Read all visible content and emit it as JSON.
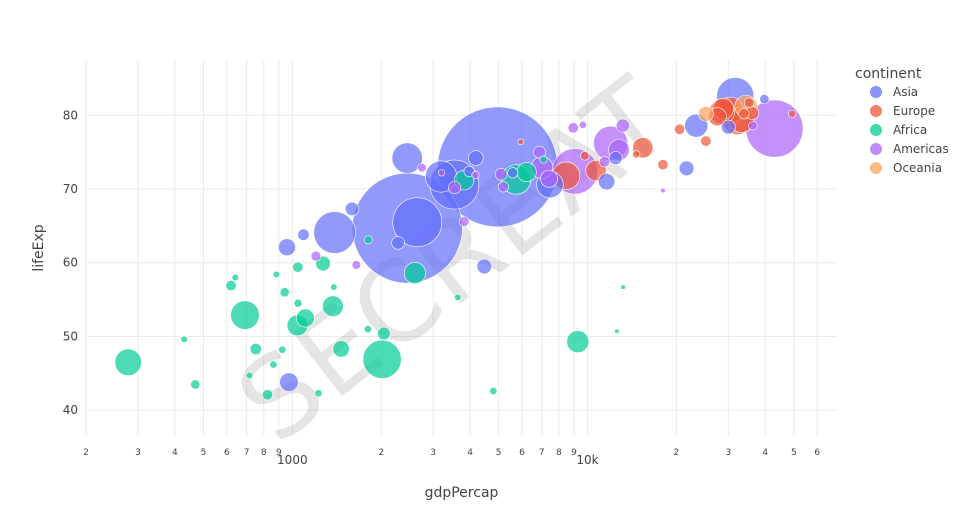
{
  "chart_data": {
    "type": "scatter",
    "x_axis": {
      "title": "gdpPercap",
      "scale": "log",
      "range": [
        200,
        70000
      ],
      "major_ticks": [
        {
          "value": 200,
          "label": "2"
        },
        {
          "value": 300,
          "label": "3"
        },
        {
          "value": 400,
          "label": "4"
        },
        {
          "value": 500,
          "label": "5"
        },
        {
          "value": 600,
          "label": "6"
        },
        {
          "value": 700,
          "label": "7"
        },
        {
          "value": 800,
          "label": "8"
        },
        {
          "value": 900,
          "label": "9"
        },
        {
          "value": 1000,
          "label": "1000"
        },
        {
          "value": 2000,
          "label": "2"
        },
        {
          "value": 3000,
          "label": "3"
        },
        {
          "value": 4000,
          "label": "4"
        },
        {
          "value": 5000,
          "label": "5"
        },
        {
          "value": 6000,
          "label": "6"
        },
        {
          "value": 7000,
          "label": "7"
        },
        {
          "value": 8000,
          "label": "8"
        },
        {
          "value": 9000,
          "label": "9"
        },
        {
          "value": 10000,
          "label": "10k"
        },
        {
          "value": 20000,
          "label": "2"
        },
        {
          "value": 30000,
          "label": "3"
        },
        {
          "value": 40000,
          "label": "4"
        },
        {
          "value": 50000,
          "label": "5"
        },
        {
          "value": 60000,
          "label": "6"
        }
      ]
    },
    "y_axis": {
      "title": "lifeExp",
      "scale": "linear",
      "range": [
        36.5,
        87.5
      ],
      "ticks": [
        40,
        50,
        60,
        70,
        80
      ]
    },
    "grid": true,
    "legend": {
      "title": "continent",
      "placement": "right",
      "entries": [
        {
          "name": "Asia",
          "color": "#636efa"
        },
        {
          "name": "Europe",
          "color": "#EF553B"
        },
        {
          "name": "Africa",
          "color": "#00cc96"
        },
        {
          "name": "Americas",
          "color": "#ab63fa"
        },
        {
          "name": "Oceania",
          "color": "#FFA15A"
        }
      ]
    },
    "watermark": "SECREAT",
    "series": [
      {
        "name": "Asia",
        "color": "#636efa",
        "points": [
          {
            "x": 2452,
            "y": 64.7,
            "size": 1110
          },
          {
            "x": 4959,
            "y": 73.0,
            "size": 1319
          },
          {
            "x": 2650,
            "y": 65.5,
            "size": 220
          },
          {
            "x": 3540,
            "y": 70.6,
            "size": 220
          },
          {
            "x": 1391,
            "y": 64.1,
            "size": 160
          },
          {
            "x": 2450,
            "y": 74.2,
            "size": 85
          },
          {
            "x": 11605,
            "y": 71.0,
            "size": 25
          },
          {
            "x": 3190,
            "y": 71.7,
            "size": 90
          },
          {
            "x": 7458,
            "y": 70.6,
            "size": 65
          },
          {
            "x": 31656,
            "y": 82.6,
            "size": 127
          },
          {
            "x": 23348,
            "y": 78.6,
            "size": 49
          },
          {
            "x": 959,
            "y": 62.1,
            "size": 27
          },
          {
            "x": 1091,
            "y": 63.8,
            "size": 12
          },
          {
            "x": 974,
            "y": 43.8,
            "size": 32
          },
          {
            "x": 1593,
            "y": 67.3,
            "size": 17
          },
          {
            "x": 4471,
            "y": 59.5,
            "size": 20
          },
          {
            "x": 4185,
            "y": 74.2,
            "size": 20
          },
          {
            "x": 3970,
            "y": 72.4,
            "size": 10
          },
          {
            "x": 5581,
            "y": 72.2,
            "size": 10
          },
          {
            "x": 2281,
            "y": 62.7,
            "size": 15
          },
          {
            "x": 21655,
            "y": 72.8,
            "size": 20
          },
          {
            "x": 30000,
            "y": 78.4,
            "size": 18
          },
          {
            "x": 39725,
            "y": 82.2,
            "size": 8
          },
          {
            "x": 12451,
            "y": 74.2,
            "size": 16
          }
        ]
      },
      {
        "name": "Europe",
        "color": "#EF553B",
        "points": [
          {
            "x": 32170,
            "y": 79.4,
            "size": 82
          },
          {
            "x": 33203,
            "y": 79.4,
            "size": 60
          },
          {
            "x": 30470,
            "y": 80.7,
            "size": 61
          },
          {
            "x": 28570,
            "y": 80.5,
            "size": 58
          },
          {
            "x": 28821,
            "y": 80.9,
            "size": 40
          },
          {
            "x": 8458,
            "y": 71.8,
            "size": 70
          },
          {
            "x": 10680,
            "y": 72.5,
            "size": 38
          },
          {
            "x": 15389,
            "y": 75.6,
            "size": 38
          },
          {
            "x": 27538,
            "y": 79.8,
            "size": 30
          },
          {
            "x": 36126,
            "y": 80.3,
            "size": 16
          },
          {
            "x": 33860,
            "y": 80.2,
            "size": 10
          },
          {
            "x": 35278,
            "y": 81.7,
            "size": 9
          },
          {
            "x": 25185,
            "y": 76.5,
            "size": 10
          },
          {
            "x": 20509,
            "y": 78.1,
            "size": 10
          },
          {
            "x": 9786,
            "y": 74.5,
            "size": 7
          },
          {
            "x": 18009,
            "y": 73.3,
            "size": 10
          },
          {
            "x": 14619,
            "y": 74.7,
            "size": 5
          },
          {
            "x": 5937,
            "y": 76.4,
            "size": 3
          },
          {
            "x": 49357,
            "y": 80.2,
            "size": 5
          }
        ]
      },
      {
        "name": "Africa",
        "color": "#00cc96",
        "points": [
          {
            "x": 278,
            "y": 46.5,
            "size": 65
          },
          {
            "x": 2014,
            "y": 46.9,
            "size": 135
          },
          {
            "x": 691,
            "y": 52.9,
            "size": 75
          },
          {
            "x": 1107,
            "y": 52.5,
            "size": 30
          },
          {
            "x": 5728,
            "y": 71.3,
            "size": 80
          },
          {
            "x": 3820,
            "y": 71.2,
            "size": 35
          },
          {
            "x": 9270,
            "y": 49.3,
            "size": 45
          },
          {
            "x": 2602,
            "y": 58.6,
            "size": 42
          },
          {
            "x": 1041,
            "y": 51.5,
            "size": 40
          },
          {
            "x": 1463,
            "y": 48.3,
            "size": 25
          },
          {
            "x": 1372,
            "y": 54.1,
            "size": 40
          },
          {
            "x": 6223,
            "y": 72.3,
            "size": 34
          },
          {
            "x": 620,
            "y": 56.9,
            "size": 10
          },
          {
            "x": 863,
            "y": 46.2,
            "size": 5
          },
          {
            "x": 752,
            "y": 48.3,
            "size": 12
          },
          {
            "x": 1044,
            "y": 59.4,
            "size": 10
          },
          {
            "x": 1271,
            "y": 59.9,
            "size": 20
          },
          {
            "x": 2042,
            "y": 50.4,
            "size": 15
          },
          {
            "x": 1226,
            "y": 42.3,
            "size": 5
          },
          {
            "x": 824,
            "y": 42.1,
            "size": 10
          },
          {
            "x": 4797,
            "y": 42.6,
            "size": 5
          },
          {
            "x": 925,
            "y": 48.2,
            "size": 5
          },
          {
            "x": 942,
            "y": 56.0,
            "size": 8
          },
          {
            "x": 469,
            "y": 43.5,
            "size": 8
          },
          {
            "x": 430,
            "y": 49.6,
            "size": 4
          },
          {
            "x": 1807,
            "y": 63.1,
            "size": 6
          },
          {
            "x": 641,
            "y": 58.0,
            "size": 4
          },
          {
            "x": 1045,
            "y": 54.5,
            "size": 6
          },
          {
            "x": 883,
            "y": 58.4,
            "size": 4
          },
          {
            "x": 3633,
            "y": 55.3,
            "size": 4
          },
          {
            "x": 1803,
            "y": 51.0,
            "size": 5
          },
          {
            "x": 716,
            "y": 44.7,
            "size": 4
          },
          {
            "x": 1382,
            "y": 56.7,
            "size": 4
          },
          {
            "x": 7093,
            "y": 74.0,
            "size": 5
          },
          {
            "x": 13206,
            "y": 56.7,
            "size": 2
          },
          {
            "x": 12570,
            "y": 50.7,
            "size": 2
          }
        ]
      },
      {
        "name": "Americas",
        "color": "#ab63fa",
        "points": [
          {
            "x": 42952,
            "y": 78.2,
            "size": 301
          },
          {
            "x": 9066,
            "y": 72.4,
            "size": 190
          },
          {
            "x": 11977,
            "y": 76.2,
            "size": 108
          },
          {
            "x": 12779,
            "y": 75.3,
            "size": 40
          },
          {
            "x": 7007,
            "y": 72.9,
            "size": 44
          },
          {
            "x": 7409,
            "y": 71.4,
            "size": 27
          },
          {
            "x": 13172,
            "y": 78.6,
            "size": 16
          },
          {
            "x": 5097,
            "y": 72.0,
            "size": 13
          },
          {
            "x": 3548,
            "y": 70.2,
            "size": 14
          },
          {
            "x": 6873,
            "y": 75.0,
            "size": 13
          },
          {
            "x": 5186,
            "y": 70.3,
            "size": 10
          },
          {
            "x": 11416,
            "y": 73.7,
            "size": 10
          },
          {
            "x": 1202,
            "y": 60.9,
            "size": 9
          },
          {
            "x": 3822,
            "y": 65.6,
            "size": 9
          },
          {
            "x": 1648,
            "y": 59.7,
            "size": 7
          },
          {
            "x": 8948,
            "y": 78.3,
            "size": 10
          },
          {
            "x": 9645,
            "y": 78.7,
            "size": 5
          },
          {
            "x": 4173,
            "y": 71.9,
            "size": 5
          },
          {
            "x": 2749,
            "y": 72.9,
            "size": 7
          },
          {
            "x": 36319,
            "y": 78.6,
            "size": 7
          },
          {
            "x": 3203,
            "y": 72.2,
            "size": 4
          },
          {
            "x": 18008,
            "y": 69.8,
            "size": 2
          }
        ]
      },
      {
        "name": "Oceania",
        "color": "#FFA15A",
        "points": [
          {
            "x": 34435,
            "y": 81.2,
            "size": 46
          },
          {
            "x": 25185,
            "y": 80.2,
            "size": 20
          }
        ]
      }
    ]
  }
}
